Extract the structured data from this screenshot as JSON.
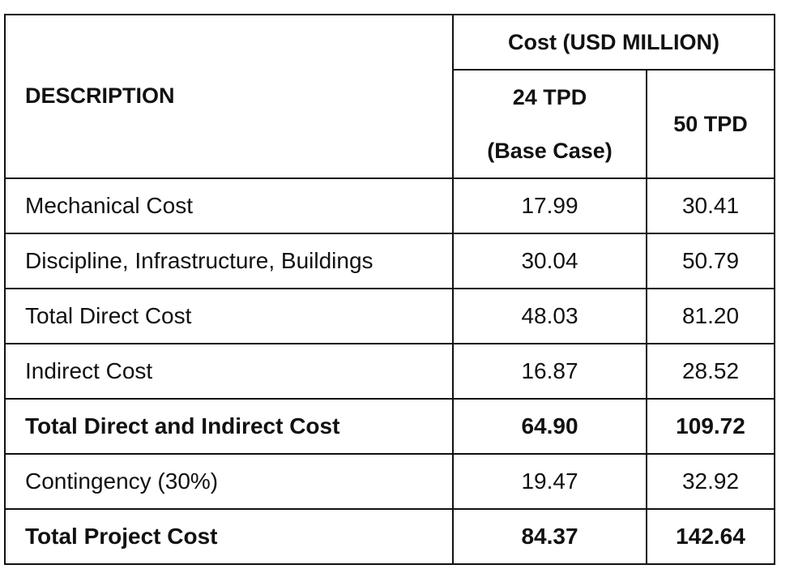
{
  "header": {
    "description": "DESCRIPTION",
    "cost_group": "Cost (USD MILLION)",
    "col1_line1": "24 TPD",
    "col1_line2": "(Base Case)",
    "col2": "50 TPD"
  },
  "rows": [
    {
      "label": "Mechanical Cost",
      "v1": "17.99",
      "v2": "30.41",
      "bold": false
    },
    {
      "label": "Discipline, Infrastructure, Buildings",
      "v1": "30.04",
      "v2": "50.79",
      "bold": false
    },
    {
      "label": "Total Direct Cost",
      "v1": "48.03",
      "v2": "81.20",
      "bold": false
    },
    {
      "label": "Indirect Cost",
      "v1": "16.87",
      "v2": "28.52",
      "bold": false
    },
    {
      "label": "Total Direct and Indirect Cost",
      "v1": "64.90",
      "v2": "109.72",
      "bold": true
    },
    {
      "label": "Contingency (30%)",
      "v1": "19.47",
      "v2": "32.92",
      "bold": false
    },
    {
      "label": "Total Project Cost",
      "v1": "84.37",
      "v2": "142.64",
      "bold": true
    }
  ]
}
